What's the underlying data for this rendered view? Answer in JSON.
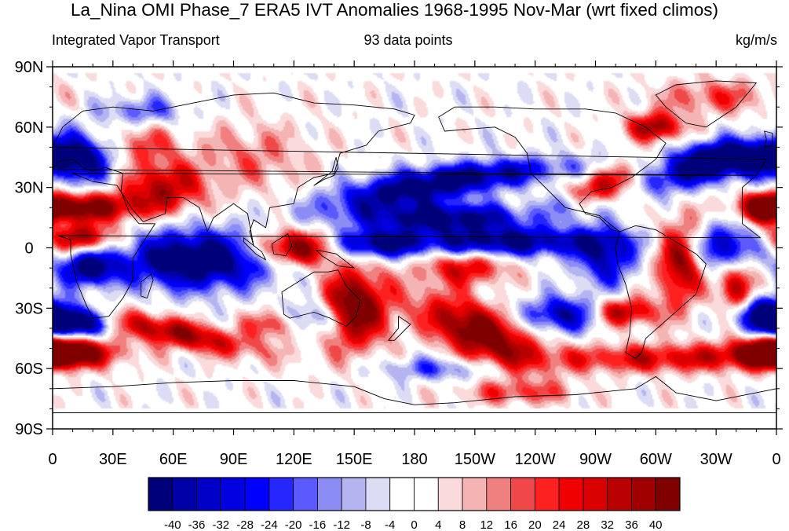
{
  "title": "La_Nina OMI Phase_7 ERA5 IVT Anomalies 1968-1995 Nov-Mar (wrt fixed climos)",
  "left_string": "Integrated Vapor Transport",
  "center_string": "93 data points",
  "right_string": "kg/m/s",
  "map": {
    "projection": "cylindrical-equidistant",
    "lat_labels": [
      "90N",
      "60N",
      "30N",
      "0",
      "30S",
      "60S",
      "90S"
    ],
    "lat_values": [
      90,
      60,
      30,
      0,
      -30,
      -60,
      -90
    ],
    "lon_labels": [
      "0",
      "30E",
      "60E",
      "90E",
      "120E",
      "150E",
      "180",
      "150W",
      "120W",
      "90W",
      "60W",
      "30W",
      "0"
    ],
    "lon_values": [
      0,
      30,
      60,
      90,
      120,
      150,
      180,
      210,
      240,
      270,
      300,
      330,
      360
    ],
    "lon_range": [
      0,
      360
    ],
    "lat_range": [
      -90,
      90
    ],
    "data_lat_range": [
      -80,
      87
    ],
    "field": {
      "name": "IVT anomaly",
      "units": "kg/m/s",
      "features": [
        {
          "lon": 280,
          "lat": 33,
          "amp": 45,
          "slon": 22,
          "slat": 6,
          "rot": 20
        },
        {
          "lon": 175,
          "lat": 28,
          "amp": -40,
          "slon": 28,
          "slat": 6,
          "rot": 8
        },
        {
          "lon": 220,
          "lat": 37,
          "amp": -30,
          "slon": 30,
          "slat": 5,
          "rot": 5
        },
        {
          "lon": 150,
          "lat": -30,
          "amp": 50,
          "slon": 12,
          "slat": 14,
          "rot": 0
        },
        {
          "lon": 212,
          "lat": -42,
          "amp": 50,
          "slon": 22,
          "slat": 9,
          "rot": -25
        },
        {
          "lon": 283,
          "lat": -32,
          "amp": 40,
          "slon": 12,
          "slat": 5,
          "rot": 0
        },
        {
          "lon": 308,
          "lat": 38,
          "amp": -45,
          "slon": 22,
          "slat": 7,
          "rot": 10
        },
        {
          "lon": 195,
          "lat": 15,
          "amp": -45,
          "slon": 32,
          "slat": 5,
          "rot": 0
        },
        {
          "lon": 120,
          "lat": 0,
          "amp": 50,
          "slon": 14,
          "slat": 6,
          "rot": 0
        },
        {
          "lon": 72,
          "lat": -6,
          "amp": -55,
          "slon": 26,
          "slat": 10,
          "rot": 0
        },
        {
          "lon": 225,
          "lat": 3,
          "amp": -45,
          "slon": 36,
          "slat": 5,
          "rot": 0
        },
        {
          "lon": 205,
          "lat": -10,
          "amp": 30,
          "slon": 15,
          "slat": 6,
          "rot": 0
        },
        {
          "lon": 255,
          "lat": -33,
          "amp": -40,
          "slon": 14,
          "slat": 6,
          "rot": 0
        },
        {
          "lon": 312,
          "lat": -8,
          "amp": 40,
          "slon": 8,
          "slat": 15,
          "rot": 0
        },
        {
          "lon": 275,
          "lat": -5,
          "amp": -35,
          "slon": 10,
          "slat": 10,
          "rot": 0
        },
        {
          "lon": 340,
          "lat": -20,
          "amp": 40,
          "slon": 6,
          "slat": 10,
          "rot": 0
        },
        {
          "lon": 335,
          "lat": 0,
          "amp": -40,
          "slon": 10,
          "slat": 8,
          "rot": 0
        },
        {
          "lon": 18,
          "lat": -10,
          "amp": -45,
          "slon": 10,
          "slat": 6,
          "rot": 0
        },
        {
          "lon": 15,
          "lat": 20,
          "amp": 45,
          "slon": 22,
          "slat": 5,
          "rot": 0
        },
        {
          "lon": 15,
          "lat": 5,
          "amp": 40,
          "slon": 12,
          "slat": 5,
          "rot": 0
        },
        {
          "lon": 15,
          "lat": 45,
          "amp": -45,
          "slon": 15,
          "slat": 9,
          "rot": 0
        },
        {
          "lon": 55,
          "lat": 30,
          "amp": 35,
          "slon": 15,
          "slat": 8,
          "rot": 0
        },
        {
          "lon": 10,
          "lat": -37,
          "amp": -55,
          "slon": 14,
          "slat": 5,
          "rot": 0
        },
        {
          "lon": 60,
          "lat": -42,
          "amp": 40,
          "slon": 30,
          "slat": 5,
          "rot": -12
        },
        {
          "lon": 5,
          "lat": -52,
          "amp": 40,
          "slon": 20,
          "slat": 5,
          "rot": 0
        },
        {
          "lon": 0,
          "lat": -52,
          "amp": 40,
          "slon": 12,
          "slat": 5,
          "rot": 0
        },
        {
          "lon": 355,
          "lat": -32,
          "amp": -45,
          "slon": 12,
          "slat": 6,
          "rot": 0
        },
        {
          "lon": 300,
          "lat": -55,
          "amp": 30,
          "slon": 40,
          "slat": 5,
          "rot": 0
        },
        {
          "lon": 340,
          "lat": 45,
          "amp": -45,
          "slon": 18,
          "slat": 6,
          "rot": 0
        },
        {
          "lon": 355,
          "lat": 20,
          "amp": 40,
          "slon": 8,
          "slat": 5,
          "rot": 0
        },
        {
          "lon": 300,
          "lat": 60,
          "amp": 40,
          "slon": 10,
          "slat": 5,
          "rot": 0
        },
        {
          "lon": 255,
          "lat": 22,
          "amp": -25,
          "slon": 10,
          "slat": 5,
          "rot": 0
        },
        {
          "lon": 160,
          "lat": 2,
          "amp": -40,
          "slon": 15,
          "slat": 5,
          "rot": 0
        },
        {
          "lon": 40,
          "lat": 50,
          "amp": 25,
          "slon": 15,
          "slat": 8,
          "rot": 0
        },
        {
          "lon": 100,
          "lat": 45,
          "amp": 15,
          "slon": 20,
          "slat": 12,
          "rot": 0
        },
        {
          "lon": 130,
          "lat": -35,
          "amp": -30,
          "slon": 10,
          "slat": 6,
          "rot": 0
        },
        {
          "lon": 110,
          "lat": -38,
          "amp": 25,
          "slon": 10,
          "slat": 5,
          "rot": 0
        },
        {
          "lon": 230,
          "lat": -72,
          "amp": 20,
          "slon": 20,
          "slat": 4,
          "rot": 0
        },
        {
          "lon": 45,
          "lat": 68,
          "amp": -20,
          "slon": 15,
          "slat": 5,
          "rot": 0
        },
        {
          "lon": 330,
          "lat": 75,
          "amp": 20,
          "slon": 20,
          "slat": 6,
          "rot": 0
        },
        {
          "lon": 190,
          "lat": -60,
          "amp": -20,
          "slon": 20,
          "slat": 4,
          "rot": 0
        }
      ]
    },
    "continents": [
      {
        "name": "north-america",
        "points": [
          [
            192,
            65
          ],
          [
            200,
            70
          ],
          [
            220,
            70
          ],
          [
            240,
            69
          ],
          [
            265,
            69
          ],
          [
            280,
            67
          ],
          [
            295,
            60
          ],
          [
            305,
            52
          ],
          [
            300,
            44
          ],
          [
            288,
            35
          ],
          [
            278,
            30
          ],
          [
            268,
            28
          ],
          [
            262,
            22
          ],
          [
            265,
            17
          ],
          [
            272,
            15
          ],
          [
            278,
            9
          ],
          [
            282,
            8
          ],
          [
            272,
            16
          ],
          [
            255,
            20
          ],
          [
            245,
            30
          ],
          [
            238,
            37
          ],
          [
            236,
            47
          ],
          [
            230,
            55
          ],
          [
            220,
            60
          ],
          [
            206,
            59
          ],
          [
            195,
            58
          ]
        ]
      },
      {
        "name": "south-america",
        "points": [
          [
            282,
            8
          ],
          [
            290,
            11
          ],
          [
            300,
            9
          ],
          [
            310,
            3
          ],
          [
            320,
            -3
          ],
          [
            325,
            -8
          ],
          [
            320,
            -23
          ],
          [
            312,
            -30
          ],
          [
            303,
            -38
          ],
          [
            295,
            -45
          ],
          [
            293,
            -52
          ],
          [
            290,
            -55
          ],
          [
            285,
            -52
          ],
          [
            287,
            -43
          ],
          [
            288,
            -30
          ],
          [
            285,
            -18
          ],
          [
            281,
            -8
          ],
          [
            280,
            0
          ]
        ]
      },
      {
        "name": "africa",
        "points": [
          [
            343,
            30
          ],
          [
            350,
            36
          ],
          [
            10,
            37
          ],
          [
            20,
            33
          ],
          [
            32,
            31
          ],
          [
            34,
            28
          ],
          [
            38,
            18
          ],
          [
            43,
            12
          ],
          [
            51,
            12
          ],
          [
            40,
            -5
          ],
          [
            40,
            -16
          ],
          [
            35,
            -25
          ],
          [
            28,
            -34
          ],
          [
            20,
            -35
          ],
          [
            17,
            -29
          ],
          [
            12,
            -17
          ],
          [
            9,
            -3
          ],
          [
            9,
            4
          ],
          [
            3,
            6
          ],
          [
            352,
            5
          ],
          [
            343,
            12
          ],
          [
            343,
            22
          ]
        ]
      },
      {
        "name": "eurasia",
        "points": [
          [
            350,
            36
          ],
          [
            355,
            44
          ],
          [
            0,
            50
          ],
          [
            5,
            60
          ],
          [
            15,
            68
          ],
          [
            30,
            70
          ],
          [
            50,
            68
          ],
          [
            70,
            72
          ],
          [
            90,
            76
          ],
          [
            110,
            77
          ],
          [
            130,
            72
          ],
          [
            150,
            71
          ],
          [
            170,
            69
          ],
          [
            180,
            66
          ],
          [
            178,
            62
          ],
          [
            162,
            58
          ],
          [
            156,
            51
          ],
          [
            143,
            47
          ],
          [
            140,
            37
          ],
          [
            130,
            35
          ],
          [
            122,
            30
          ],
          [
            120,
            22
          ],
          [
            108,
            20
          ],
          [
            106,
            10
          ],
          [
            100,
            14
          ],
          [
            98,
            8
          ],
          [
            100,
            1
          ],
          [
            97,
            17
          ],
          [
            90,
            22
          ],
          [
            80,
            15
          ],
          [
            77,
            8
          ],
          [
            73,
            20
          ],
          [
            65,
            25
          ],
          [
            57,
            25
          ],
          [
            56,
            17
          ],
          [
            45,
            13
          ],
          [
            39,
            20
          ],
          [
            34,
            28
          ],
          [
            35,
            37
          ],
          [
            26,
            40
          ],
          [
            20,
            38
          ],
          [
            15,
            40
          ],
          [
            10,
            44
          ],
          [
            3,
            43
          ],
          [
            0,
            39
          ]
        ]
      },
      {
        "name": "australia",
        "points": [
          [
            114,
            -22
          ],
          [
            122,
            -17
          ],
          [
            130,
            -12
          ],
          [
            137,
            -12
          ],
          [
            142,
            -11
          ],
          [
            146,
            -19
          ],
          [
            153,
            -26
          ],
          [
            151,
            -34
          ],
          [
            146,
            -39
          ],
          [
            138,
            -35
          ],
          [
            130,
            -32
          ],
          [
            118,
            -35
          ],
          [
            115,
            -33
          ]
        ]
      },
      {
        "name": "antarctica",
        "points": [
          [
            0,
            -70
          ],
          [
            30,
            -69
          ],
          [
            60,
            -67
          ],
          [
            90,
            -66
          ],
          [
            120,
            -66
          ],
          [
            150,
            -69
          ],
          [
            165,
            -75
          ],
          [
            180,
            -78
          ],
          [
            200,
            -77
          ],
          [
            230,
            -74
          ],
          [
            260,
            -73
          ],
          [
            290,
            -70
          ],
          [
            300,
            -64
          ],
          [
            310,
            -72
          ],
          [
            330,
            -76
          ],
          [
            350,
            -72
          ],
          [
            360,
            -70
          ],
          [
            360,
            -82
          ],
          [
            0,
            -82
          ]
        ]
      },
      {
        "name": "greenland",
        "points": [
          [
            300,
            76
          ],
          [
            310,
            81
          ],
          [
            330,
            83
          ],
          [
            350,
            82
          ],
          [
            340,
            70
          ],
          [
            325,
            60
          ],
          [
            315,
            62
          ],
          [
            305,
            70
          ]
        ]
      },
      {
        "name": "madagascar",
        "points": [
          [
            44,
            -17
          ],
          [
            49,
            -13
          ],
          [
            50,
            -16
          ],
          [
            47,
            -25
          ],
          [
            44,
            -24
          ]
        ]
      },
      {
        "name": "japan",
        "points": [
          [
            130,
            31
          ],
          [
            135,
            34
          ],
          [
            140,
            36
          ],
          [
            142,
            40
          ],
          [
            141,
            45
          ],
          [
            139,
            38
          ],
          [
            134,
            34
          ]
        ]
      },
      {
        "name": "uk",
        "points": [
          [
            354,
            50
          ],
          [
            358,
            51
          ],
          [
            358,
            57
          ],
          [
            354,
            58
          ],
          [
            355,
            54
          ]
        ]
      },
      {
        "name": "new-zealand",
        "points": [
          [
            172,
            -34
          ],
          [
            178,
            -38
          ],
          [
            175,
            -41
          ],
          [
            170,
            -46
          ],
          [
            167,
            -46
          ],
          [
            172,
            -40
          ]
        ]
      },
      {
        "name": "borneo",
        "points": [
          [
            109,
            2
          ],
          [
            117,
            7
          ],
          [
            119,
            1
          ],
          [
            116,
            -4
          ],
          [
            110,
            -3
          ]
        ]
      },
      {
        "name": "sumatra",
        "points": [
          [
            95,
            5
          ],
          [
            104,
            -2
          ],
          [
            106,
            -6
          ],
          [
            101,
            -3
          ],
          [
            95,
            3
          ]
        ]
      },
      {
        "name": "new-guinea",
        "points": [
          [
            131,
            -1
          ],
          [
            141,
            -3
          ],
          [
            150,
            -10
          ],
          [
            142,
            -9
          ],
          [
            134,
            -4
          ]
        ]
      }
    ]
  },
  "colorbar": {
    "levels": [
      "-40",
      "-36",
      "-32",
      "-28",
      "-24",
      "-20",
      "-16",
      "-12",
      "-8",
      "-4",
      "0",
      "4",
      "8",
      "12",
      "16",
      "20",
      "24",
      "28",
      "32",
      "36",
      "40"
    ],
    "level_values": [
      -40,
      -36,
      -32,
      -28,
      -24,
      -20,
      -16,
      -12,
      -8,
      -4,
      0,
      4,
      8,
      12,
      16,
      20,
      24,
      28,
      32,
      36,
      40
    ],
    "colors": [
      "#00007a",
      "#0000a8",
      "#0000c8",
      "#0000e0",
      "#0000ff",
      "#2626ff",
      "#5a5aff",
      "#8c8cf5",
      "#b4b4f0",
      "#dcdcf5",
      "#ffffff",
      "#ffffff",
      "#fadada",
      "#f5b4b4",
      "#f08080",
      "#f04848",
      "#ff2020",
      "#f00000",
      "#d80000",
      "#b80000",
      "#a00000",
      "#800000"
    ]
  },
  "colors": {
    "land_outline": "#000000",
    "frame": "#000000",
    "background": "#ffffff"
  }
}
